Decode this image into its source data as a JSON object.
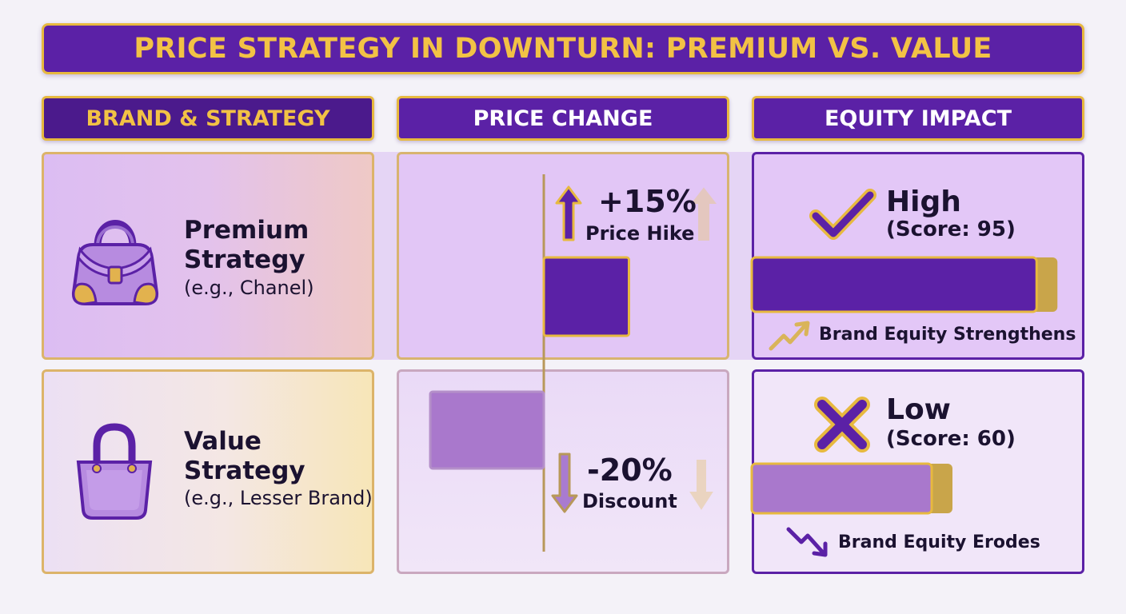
{
  "title": "PRICE STRATEGY IN DOWNTURN: PREMIUM VS. VALUE",
  "headers": {
    "brand": "BRAND & STRATEGY",
    "price": "PRICE CHANGE",
    "equity": "EQUITY IMPACT"
  },
  "colors": {
    "purple": "#5b21a6",
    "light_purple": "#a978cc",
    "gold": "#e7b93f"
  },
  "rows": [
    {
      "name_line1": "Premium",
      "name_line2": "Strategy",
      "example": "(e.g., Chanel)",
      "icon": "handbag-icon",
      "pct_text": "+15%",
      "pct_label": "Price Hike",
      "impact_level": "High",
      "impact_score": "(Score: 95)",
      "trend_text": "Brand Equity Strengthens",
      "trend_icon": "trend-up-icon",
      "impact_icon": "checkmark-icon"
    },
    {
      "name_line1": "Value",
      "name_line2": "Strategy",
      "example": "(e.g., Lesser Brand)",
      "icon": "tote-bag-icon",
      "pct_text": "-20%",
      "pct_label": "Discount",
      "impact_level": "Low",
      "impact_score": "(Score: 60)",
      "trend_text": "Brand Equity Erodes",
      "trend_icon": "trend-down-icon",
      "impact_icon": "cross-icon"
    }
  ],
  "chart_data": [
    {
      "type": "bar",
      "title": "PRICE CHANGE",
      "categories": [
        "Premium Strategy",
        "Value Strategy"
      ],
      "values": [
        15,
        -20
      ],
      "unit": "%",
      "orientation": "horizontal"
    },
    {
      "type": "bar",
      "title": "EQUITY IMPACT",
      "categories": [
        "Premium Strategy",
        "Value Strategy"
      ],
      "values": [
        95,
        60
      ],
      "orientation": "horizontal"
    }
  ]
}
